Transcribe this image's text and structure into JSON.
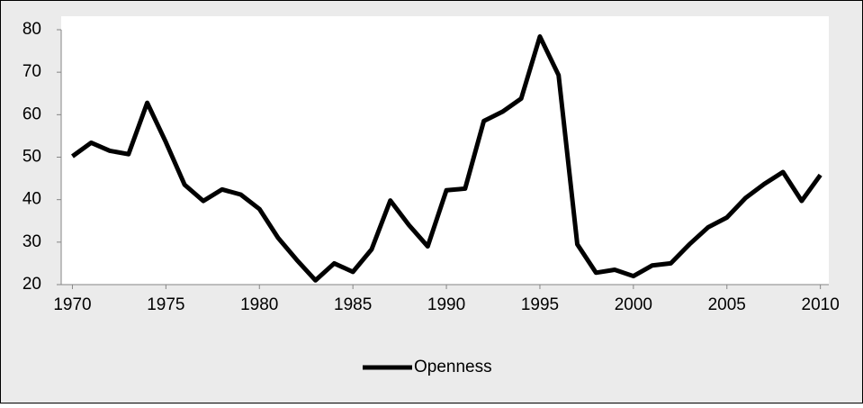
{
  "chart_data": {
    "type": "line",
    "x": [
      1970,
      1971,
      1972,
      1973,
      1974,
      1975,
      1976,
      1977,
      1978,
      1979,
      1980,
      1981,
      1982,
      1983,
      1984,
      1985,
      1986,
      1987,
      1988,
      1989,
      1990,
      1991,
      1992,
      1993,
      1994,
      1995,
      1996,
      1997,
      1998,
      1999,
      2000,
      2001,
      2002,
      2003,
      2004,
      2005,
      2006,
      2007,
      2008,
      2009,
      2010
    ],
    "series": [
      {
        "name": "Openness",
        "color": "#000000",
        "values": [
          50.2,
          53.4,
          51.5,
          50.7,
          62.8,
          53.5,
          43.5,
          39.7,
          42.4,
          41.2,
          37.8,
          31,
          25.8,
          21,
          25,
          23,
          28.3,
          39.8,
          34,
          29,
          42.2,
          42.6,
          58.5,
          60.7,
          63.8,
          78.4,
          69.3,
          29.5,
          22.8,
          23.5,
          22,
          24.5,
          25,
          29.5,
          33.5,
          35.8,
          40.4,
          43.7,
          46.5,
          39.7,
          45.8
        ]
      }
    ],
    "xlim": [
      1969.4,
      2010.45
    ],
    "xticks": [
      1970,
      1975,
      1980,
      1985,
      1990,
      1995,
      2000,
      2005,
      2010
    ],
    "ylim": [
      20,
      80
    ],
    "yticks": [
      20,
      30,
      40,
      50,
      60,
      70,
      80
    ],
    "grid": false,
    "legend": "bottom"
  }
}
